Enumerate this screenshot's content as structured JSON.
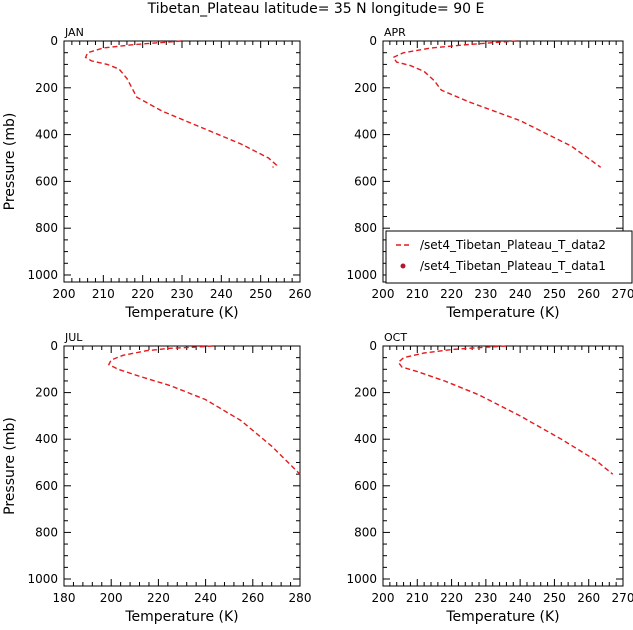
{
  "title": "Tibetan_Plateau  latitude= 35 N longitude= 90 E",
  "legend": {
    "entries": [
      {
        "label": "/set4_Tibetan_Plateau_T_data2",
        "style": "dashed-line",
        "color": "#e41a1c"
      },
      {
        "label": "/set4_Tibetan_Plateau_T_data1",
        "style": "dot",
        "color": "#b2182b"
      }
    ]
  },
  "chart_data": [
    {
      "type": "line",
      "panel": "JAN",
      "month_label": "JAN",
      "xlabel": "Temperature (K)",
      "ylabel": "Pressure (mb)",
      "xlim": [
        200,
        260
      ],
      "ylim": [
        1030,
        0
      ],
      "y_inverted": true,
      "xticks": [
        "200",
        "210",
        "220",
        "230",
        "240",
        "250",
        "260"
      ],
      "yticks": [
        "0",
        "200",
        "400",
        "600",
        "800",
        "1000"
      ],
      "series": [
        {
          "color": "#e41a1c",
          "dash": "dashed",
          "x": [
            229.8,
            226,
            218,
            210,
            206,
            205.5,
            207,
            211,
            214,
            216,
            218.5,
            225,
            235,
            245,
            252,
            254,
            253
          ],
          "y": [
            0,
            5,
            15,
            30,
            50,
            70,
            85,
            100,
            120,
            160,
            240,
            300,
            370,
            440,
            500,
            530,
            540
          ]
        }
      ]
    },
    {
      "type": "line",
      "panel": "APR",
      "month_label": "APR",
      "xlabel": "Temperature (K)",
      "ylabel": "",
      "xlim": [
        200,
        270
      ],
      "ylim": [
        1030,
        0
      ],
      "y_inverted": true,
      "xticks": [
        "200",
        "210",
        "220",
        "230",
        "240",
        "250",
        "260",
        "270"
      ],
      "yticks": [
        "0",
        "200",
        "400",
        "600",
        "800",
        "1000"
      ],
      "series": [
        {
          "color": "#e41a1c",
          "dash": "dashed",
          "x": [
            239,
            234,
            225,
            214,
            206,
            203,
            204,
            208,
            212,
            215,
            217,
            225,
            240,
            255,
            263.5
          ],
          "y": [
            0,
            5,
            15,
            30,
            50,
            70,
            90,
            105,
            130,
            170,
            210,
            260,
            340,
            450,
            540
          ]
        }
      ]
    },
    {
      "type": "line",
      "panel": "JUL",
      "month_label": "JUL",
      "xlabel": "Temperature (K)",
      "ylabel": "Pressure (mb)",
      "xlim": [
        180,
        280
      ],
      "ylim": [
        1030,
        0
      ],
      "y_inverted": true,
      "xticks": [
        "180",
        "200",
        "220",
        "240",
        "260",
        "280"
      ],
      "yticks": [
        "0",
        "200",
        "400",
        "600",
        "800",
        "1000"
      ],
      "series": [
        {
          "color": "#e41a1c",
          "dash": "dashed",
          "x": [
            243,
            235,
            225,
            215,
            205,
            200,
            199,
            203,
            212,
            225,
            240,
            255,
            268,
            280
          ],
          "y": [
            0,
            5,
            10,
            20,
            40,
            60,
            80,
            100,
            130,
            170,
            230,
            320,
            430,
            550
          ]
        }
      ]
    },
    {
      "type": "line",
      "panel": "OCT",
      "month_label": "OCT",
      "xlabel": "Temperature (K)",
      "ylabel": "",
      "xlim": [
        200,
        270
      ],
      "ylim": [
        1030,
        0
      ],
      "y_inverted": true,
      "xticks": [
        "200",
        "210",
        "220",
        "230",
        "240",
        "250",
        "260",
        "270"
      ],
      "yticks": [
        "0",
        "200",
        "400",
        "600",
        "800",
        "1000"
      ],
      "series": [
        {
          "color": "#e41a1c",
          "dash": "dashed",
          "x": [
            236,
            230,
            220,
            212,
            206,
            204.5,
            205.5,
            210,
            218,
            228,
            240,
            252,
            262,
            267
          ],
          "y": [
            0,
            5,
            15,
            30,
            50,
            70,
            90,
            110,
            150,
            210,
            300,
            400,
            490,
            550
          ]
        }
      ]
    }
  ]
}
